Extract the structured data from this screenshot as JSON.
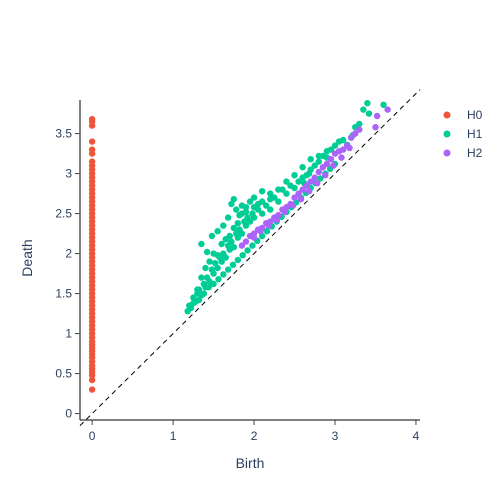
{
  "chart_data": {
    "type": "scatter",
    "xlabel": "Birth",
    "ylabel": "Death",
    "xlim": [
      -0.15,
      4.05
    ],
    "ylim": [
      -0.08,
      3.92
    ],
    "xticks": [
      0,
      1,
      2,
      3,
      4
    ],
    "xtick_labels": [
      "0",
      "1",
      "2",
      "3",
      "4"
    ],
    "yticks": [
      0,
      0.5,
      1,
      1.5,
      2,
      2.5,
      3,
      3.5
    ],
    "ytick_labels": [
      "0",
      "0.5",
      "1",
      "1.5",
      "2",
      "2.5",
      "3",
      "3.5"
    ],
    "grid": false,
    "legend_position": "top-right",
    "diagonal": {
      "style": "dashed",
      "color": "#000000",
      "from": [
        -0.15,
        -0.15
      ],
      "to": [
        4.05,
        4.05
      ]
    },
    "series": [
      {
        "name": "H0",
        "color": "#EF553B",
        "points": [
          [
            0,
            0.3
          ],
          [
            0,
            0.42
          ],
          [
            0,
            0.48
          ],
          [
            0,
            0.52
          ],
          [
            0,
            0.56
          ],
          [
            0,
            0.6
          ],
          [
            0,
            0.65
          ],
          [
            0,
            0.7
          ],
          [
            0,
            0.74
          ],
          [
            0,
            0.78
          ],
          [
            0,
            0.82
          ],
          [
            0,
            0.86
          ],
          [
            0,
            0.9
          ],
          [
            0,
            0.95
          ],
          [
            0,
            1.0
          ],
          [
            0,
            1.05
          ],
          [
            0,
            1.1
          ],
          [
            0,
            1.15
          ],
          [
            0,
            1.2
          ],
          [
            0,
            1.25
          ],
          [
            0,
            1.3
          ],
          [
            0,
            1.35
          ],
          [
            0,
            1.4
          ],
          [
            0,
            1.45
          ],
          [
            0,
            1.5
          ],
          [
            0,
            1.55
          ],
          [
            0,
            1.6
          ],
          [
            0,
            1.65
          ],
          [
            0,
            1.7
          ],
          [
            0,
            1.75
          ],
          [
            0,
            1.8
          ],
          [
            0,
            1.85
          ],
          [
            0,
            1.9
          ],
          [
            0,
            1.95
          ],
          [
            0,
            2.0
          ],
          [
            0,
            2.05
          ],
          [
            0,
            2.1
          ],
          [
            0,
            2.15
          ],
          [
            0,
            2.2
          ],
          [
            0,
            2.25
          ],
          [
            0,
            2.3
          ],
          [
            0,
            2.35
          ],
          [
            0,
            2.4
          ],
          [
            0,
            2.45
          ],
          [
            0,
            2.5
          ],
          [
            0,
            2.55
          ],
          [
            0,
            2.6
          ],
          [
            0,
            2.65
          ],
          [
            0,
            2.7
          ],
          [
            0,
            2.75
          ],
          [
            0,
            2.8
          ],
          [
            0,
            2.85
          ],
          [
            0,
            2.9
          ],
          [
            0,
            2.95
          ],
          [
            0,
            3.0
          ],
          [
            0,
            3.05
          ],
          [
            0,
            3.1
          ],
          [
            0,
            3.15
          ],
          [
            0,
            3.25
          ],
          [
            0,
            3.3
          ],
          [
            0,
            3.4
          ],
          [
            0,
            3.6
          ],
          [
            0,
            3.65
          ],
          [
            0,
            3.68
          ]
        ]
      },
      {
        "name": "H1",
        "color": "#00CC96",
        "points": [
          [
            1.18,
            1.28
          ],
          [
            1.2,
            1.35
          ],
          [
            1.22,
            1.32
          ],
          [
            1.25,
            1.45
          ],
          [
            1.28,
            1.4
          ],
          [
            1.3,
            1.5
          ],
          [
            1.32,
            1.55
          ],
          [
            1.35,
            1.48
          ],
          [
            1.38,
            1.62
          ],
          [
            1.4,
            1.58
          ],
          [
            1.42,
            1.7
          ],
          [
            1.45,
            1.65
          ],
          [
            1.48,
            1.8
          ],
          [
            1.5,
            1.75
          ],
          [
            1.52,
            1.88
          ],
          [
            1.55,
            1.82
          ],
          [
            1.58,
            1.95
          ],
          [
            1.6,
            1.9
          ],
          [
            1.62,
            2.0
          ],
          [
            1.65,
            1.95
          ],
          [
            1.68,
            2.1
          ],
          [
            1.7,
            2.05
          ],
          [
            1.72,
            2.15
          ],
          [
            1.75,
            2.08
          ],
          [
            1.78,
            2.25
          ],
          [
            1.8,
            2.2
          ],
          [
            1.82,
            2.3
          ],
          [
            1.85,
            2.25
          ],
          [
            1.88,
            2.4
          ],
          [
            1.9,
            2.35
          ],
          [
            1.92,
            2.45
          ],
          [
            1.95,
            2.4
          ],
          [
            1.98,
            2.5
          ],
          [
            2.0,
            2.45
          ],
          [
            2.05,
            2.55
          ],
          [
            2.1,
            2.5
          ],
          [
            2.15,
            2.6
          ],
          [
            2.2,
            2.55
          ],
          [
            2.25,
            2.7
          ],
          [
            2.3,
            2.65
          ],
          [
            2.35,
            2.8
          ],
          [
            2.4,
            2.75
          ],
          [
            2.45,
            2.85
          ],
          [
            2.5,
            2.82
          ],
          [
            2.55,
            2.9
          ],
          [
            2.6,
            2.95
          ],
          [
            2.65,
            2.98
          ],
          [
            2.7,
            3.05
          ],
          [
            2.75,
            3.1
          ],
          [
            2.8,
            3.15
          ],
          [
            2.85,
            3.22
          ],
          [
            2.9,
            3.28
          ],
          [
            2.95,
            3.3
          ],
          [
            3.0,
            3.35
          ],
          [
            3.05,
            3.4
          ],
          [
            3.1,
            3.42
          ],
          [
            3.2,
            3.45
          ],
          [
            3.25,
            3.58
          ],
          [
            3.3,
            3.62
          ],
          [
            3.35,
            3.8
          ],
          [
            3.4,
            3.88
          ],
          [
            3.42,
            3.75
          ],
          [
            3.6,
            3.86
          ],
          [
            1.3,
            1.55
          ],
          [
            1.35,
            1.7
          ],
          [
            1.4,
            1.82
          ],
          [
            1.45,
            1.9
          ],
          [
            1.5,
            2.0
          ],
          [
            1.55,
            1.98
          ],
          [
            1.6,
            2.12
          ],
          [
            1.65,
            2.18
          ],
          [
            1.7,
            2.22
          ],
          [
            1.75,
            2.32
          ],
          [
            1.8,
            2.38
          ],
          [
            1.85,
            2.5
          ],
          [
            1.9,
            2.58
          ],
          [
            1.95,
            2.65
          ],
          [
            2.0,
            2.7
          ],
          [
            2.05,
            2.62
          ],
          [
            2.1,
            2.78
          ],
          [
            2.2,
            2.68
          ],
          [
            2.3,
            2.8
          ],
          [
            2.4,
            2.9
          ],
          [
            2.5,
            2.98
          ],
          [
            2.6,
            3.08
          ],
          [
            2.7,
            3.18
          ],
          [
            2.8,
            3.22
          ],
          [
            1.25,
            1.38
          ],
          [
            1.32,
            1.42
          ],
          [
            1.38,
            1.5
          ],
          [
            1.44,
            1.58
          ],
          [
            1.5,
            1.62
          ],
          [
            1.56,
            1.68
          ],
          [
            1.62,
            1.74
          ],
          [
            1.68,
            1.8
          ],
          [
            1.74,
            1.86
          ],
          [
            1.8,
            1.92
          ],
          [
            1.86,
            1.98
          ],
          [
            1.92,
            2.04
          ],
          [
            1.98,
            2.1
          ],
          [
            2.04,
            2.16
          ],
          [
            2.1,
            2.22
          ],
          [
            2.16,
            2.28
          ],
          [
            2.22,
            2.34
          ],
          [
            2.28,
            2.4
          ],
          [
            2.34,
            2.46
          ],
          [
            2.4,
            2.52
          ],
          [
            2.46,
            2.58
          ],
          [
            2.52,
            2.64
          ],
          [
            2.58,
            2.7
          ],
          [
            2.64,
            2.76
          ],
          [
            2.7,
            2.82
          ],
          [
            2.76,
            2.88
          ],
          [
            2.82,
            2.94
          ],
          [
            2.88,
            3.0
          ],
          [
            2.94,
            3.06
          ],
          [
            3.0,
            3.12
          ],
          [
            1.72,
            2.62
          ],
          [
            1.78,
            2.55
          ],
          [
            1.82,
            2.48
          ],
          [
            1.85,
            2.6
          ],
          [
            1.9,
            2.52
          ],
          [
            2.0,
            2.58
          ],
          [
            2.1,
            2.65
          ],
          [
            2.2,
            2.75
          ],
          [
            1.35,
            2.12
          ],
          [
            1.42,
            2.02
          ],
          [
            1.48,
            2.22
          ],
          [
            1.55,
            2.28
          ],
          [
            1.62,
            2.35
          ],
          [
            1.68,
            2.45
          ],
          [
            1.75,
            2.68
          ],
          [
            2.9,
            3.2
          ],
          [
            3.15,
            3.36
          ],
          [
            3.22,
            3.48
          ],
          [
            2.62,
            2.88
          ],
          [
            2.68,
            3.0
          ]
        ]
      },
      {
        "name": "H2",
        "color": "#AB63FA",
        "points": [
          [
            1.85,
            2.1
          ],
          [
            1.9,
            2.15
          ],
          [
            1.95,
            2.22
          ],
          [
            2.0,
            2.25
          ],
          [
            2.05,
            2.3
          ],
          [
            2.1,
            2.32
          ],
          [
            2.15,
            2.38
          ],
          [
            2.2,
            2.4
          ],
          [
            2.25,
            2.45
          ],
          [
            2.3,
            2.48
          ],
          [
            2.35,
            2.55
          ],
          [
            2.4,
            2.58
          ],
          [
            2.45,
            2.62
          ],
          [
            2.5,
            2.7
          ],
          [
            2.55,
            2.75
          ],
          [
            2.6,
            2.8
          ],
          [
            2.65,
            2.85
          ],
          [
            2.7,
            2.9
          ],
          [
            2.75,
            2.95
          ],
          [
            2.8,
            3.02
          ],
          [
            2.85,
            3.08
          ],
          [
            2.9,
            3.12
          ],
          [
            2.95,
            3.18
          ],
          [
            3.0,
            3.25
          ],
          [
            3.05,
            3.28
          ],
          [
            3.1,
            3.3
          ],
          [
            3.15,
            3.35
          ],
          [
            3.2,
            3.45
          ],
          [
            3.25,
            3.5
          ],
          [
            3.3,
            3.55
          ],
          [
            3.5,
            3.58
          ],
          [
            3.52,
            3.72
          ],
          [
            3.65,
            3.8
          ],
          [
            2.0,
            2.2
          ],
          [
            2.08,
            2.28
          ],
          [
            2.18,
            2.35
          ],
          [
            2.28,
            2.42
          ],
          [
            2.38,
            2.52
          ],
          [
            2.48,
            2.6
          ],
          [
            2.58,
            2.68
          ],
          [
            2.68,
            2.78
          ],
          [
            2.78,
            2.88
          ],
          [
            2.88,
            2.98
          ],
          [
            2.98,
            3.1
          ],
          [
            3.08,
            3.2
          ],
          [
            3.18,
            3.32
          ]
        ]
      }
    ]
  }
}
